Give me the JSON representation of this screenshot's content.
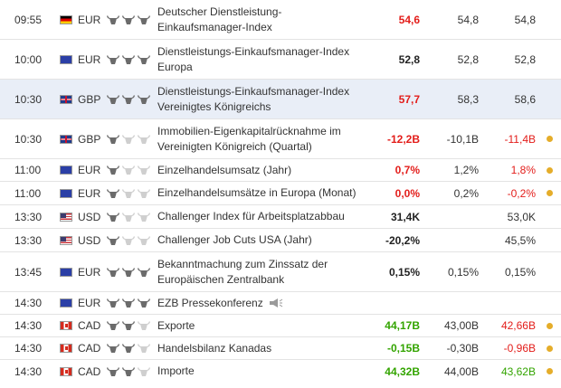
{
  "colors": {
    "negative": "#e31d1a",
    "positive": "#33a400",
    "highlight_row": "#e9eef7",
    "alert_dot": "#e5ad2a"
  },
  "events": [
    {
      "time": "09:55",
      "currency": "EUR",
      "flag": "germany-flag-icon",
      "importance": 3,
      "name": "Deutscher Dienstleistung-Einkaufsmanager-Index",
      "actual": "54,6",
      "actual_color": "red",
      "forecast": "54,8",
      "previous": "54,8",
      "previous_color": "normal",
      "dot": false,
      "speech": false
    },
    {
      "time": "10:00",
      "currency": "EUR",
      "flag": "eu-flag-icon",
      "importance": 3,
      "name": "Dienstleistungs-Einkaufsmanager-Index Europa",
      "actual": "52,8",
      "actual_color": "black",
      "forecast": "52,8",
      "previous": "52,8",
      "previous_color": "normal",
      "dot": false,
      "speech": false
    },
    {
      "time": "10:30",
      "currency": "GBP",
      "flag": "uk-flag-icon",
      "importance": 3,
      "name": "Dienstleistungs-Einkaufsmanager-Index Vereinigtes Königreichs",
      "actual": "57,7",
      "actual_color": "red",
      "forecast": "58,3",
      "previous": "58,6",
      "previous_color": "normal",
      "dot": false,
      "speech": false
    },
    {
      "time": "10:30",
      "currency": "GBP",
      "flag": "uk-flag-icon",
      "importance": 1,
      "name": "Immobilien-Eigenkapitalrücknahme im Vereinigten Königreich (Quartal)",
      "actual": "-12,2B",
      "actual_color": "red",
      "forecast": "-10,1B",
      "previous": "-11,4B",
      "previous_color": "red",
      "dot": true,
      "speech": false
    },
    {
      "time": "11:00",
      "currency": "EUR",
      "flag": "eu-flag-icon",
      "importance": 1,
      "name": "Einzelhandelsumsatz (Jahr)",
      "actual": "0,7%",
      "actual_color": "red",
      "forecast": "1,2%",
      "previous": "1,8%",
      "previous_color": "red",
      "dot": true,
      "speech": false
    },
    {
      "time": "11:00",
      "currency": "EUR",
      "flag": "eu-flag-icon",
      "importance": 1,
      "name": "Einzelhandelsumsätze in Europa (Monat)",
      "actual": "0,0%",
      "actual_color": "red",
      "forecast": "0,2%",
      "previous": "-0,2%",
      "previous_color": "red",
      "dot": true,
      "speech": false
    },
    {
      "time": "13:30",
      "currency": "USD",
      "flag": "usa-flag-icon",
      "importance": 1,
      "name": "Challenger Index für Arbeitsplatzabbau",
      "actual": "31,4K",
      "actual_color": "black",
      "forecast": "",
      "previous": "53,0K",
      "previous_color": "normal",
      "dot": false,
      "speech": false
    },
    {
      "time": "13:30",
      "currency": "USD",
      "flag": "usa-flag-icon",
      "importance": 1,
      "name": "Challenger Job Cuts USA (Jahr)",
      "actual": "-20,2%",
      "actual_color": "black",
      "forecast": "",
      "previous": "45,5%",
      "previous_color": "normal",
      "dot": false,
      "speech": false
    },
    {
      "time": "13:45",
      "currency": "EUR",
      "flag": "eu-flag-icon",
      "importance": 3,
      "name": "Bekanntmachung zum Zinssatz der Europäischen Zentralbank",
      "actual": "0,15%",
      "actual_color": "black",
      "forecast": "0,15%",
      "previous": "0,15%",
      "previous_color": "normal",
      "dot": false,
      "speech": false
    },
    {
      "time": "14:30",
      "currency": "EUR",
      "flag": "eu-flag-icon",
      "importance": 3,
      "name": "EZB Pressekonferenz",
      "actual": "",
      "actual_color": "black",
      "forecast": "",
      "previous": "",
      "previous_color": "normal",
      "dot": false,
      "speech": true
    },
    {
      "time": "14:30",
      "currency": "CAD",
      "flag": "canada-flag-icon",
      "importance": 2,
      "name": "Exporte",
      "actual": "44,17B",
      "actual_color": "green",
      "forecast": "43,00B",
      "previous": "42,66B",
      "previous_color": "red",
      "dot": true,
      "speech": false
    },
    {
      "time": "14:30",
      "currency": "CAD",
      "flag": "canada-flag-icon",
      "importance": 2,
      "name": "Handelsbilanz Kanadas",
      "actual": "-0,15B",
      "actual_color": "green",
      "forecast": "-0,30B",
      "previous": "-0,96B",
      "previous_color": "red",
      "dot": true,
      "speech": false
    },
    {
      "time": "14:30",
      "currency": "CAD",
      "flag": "canada-flag-icon",
      "importance": 2,
      "name": "Importe",
      "actual": "44,32B",
      "actual_color": "green",
      "forecast": "44,00B",
      "previous": "43,62B",
      "previous_color": "green",
      "dot": true,
      "speech": false
    }
  ]
}
